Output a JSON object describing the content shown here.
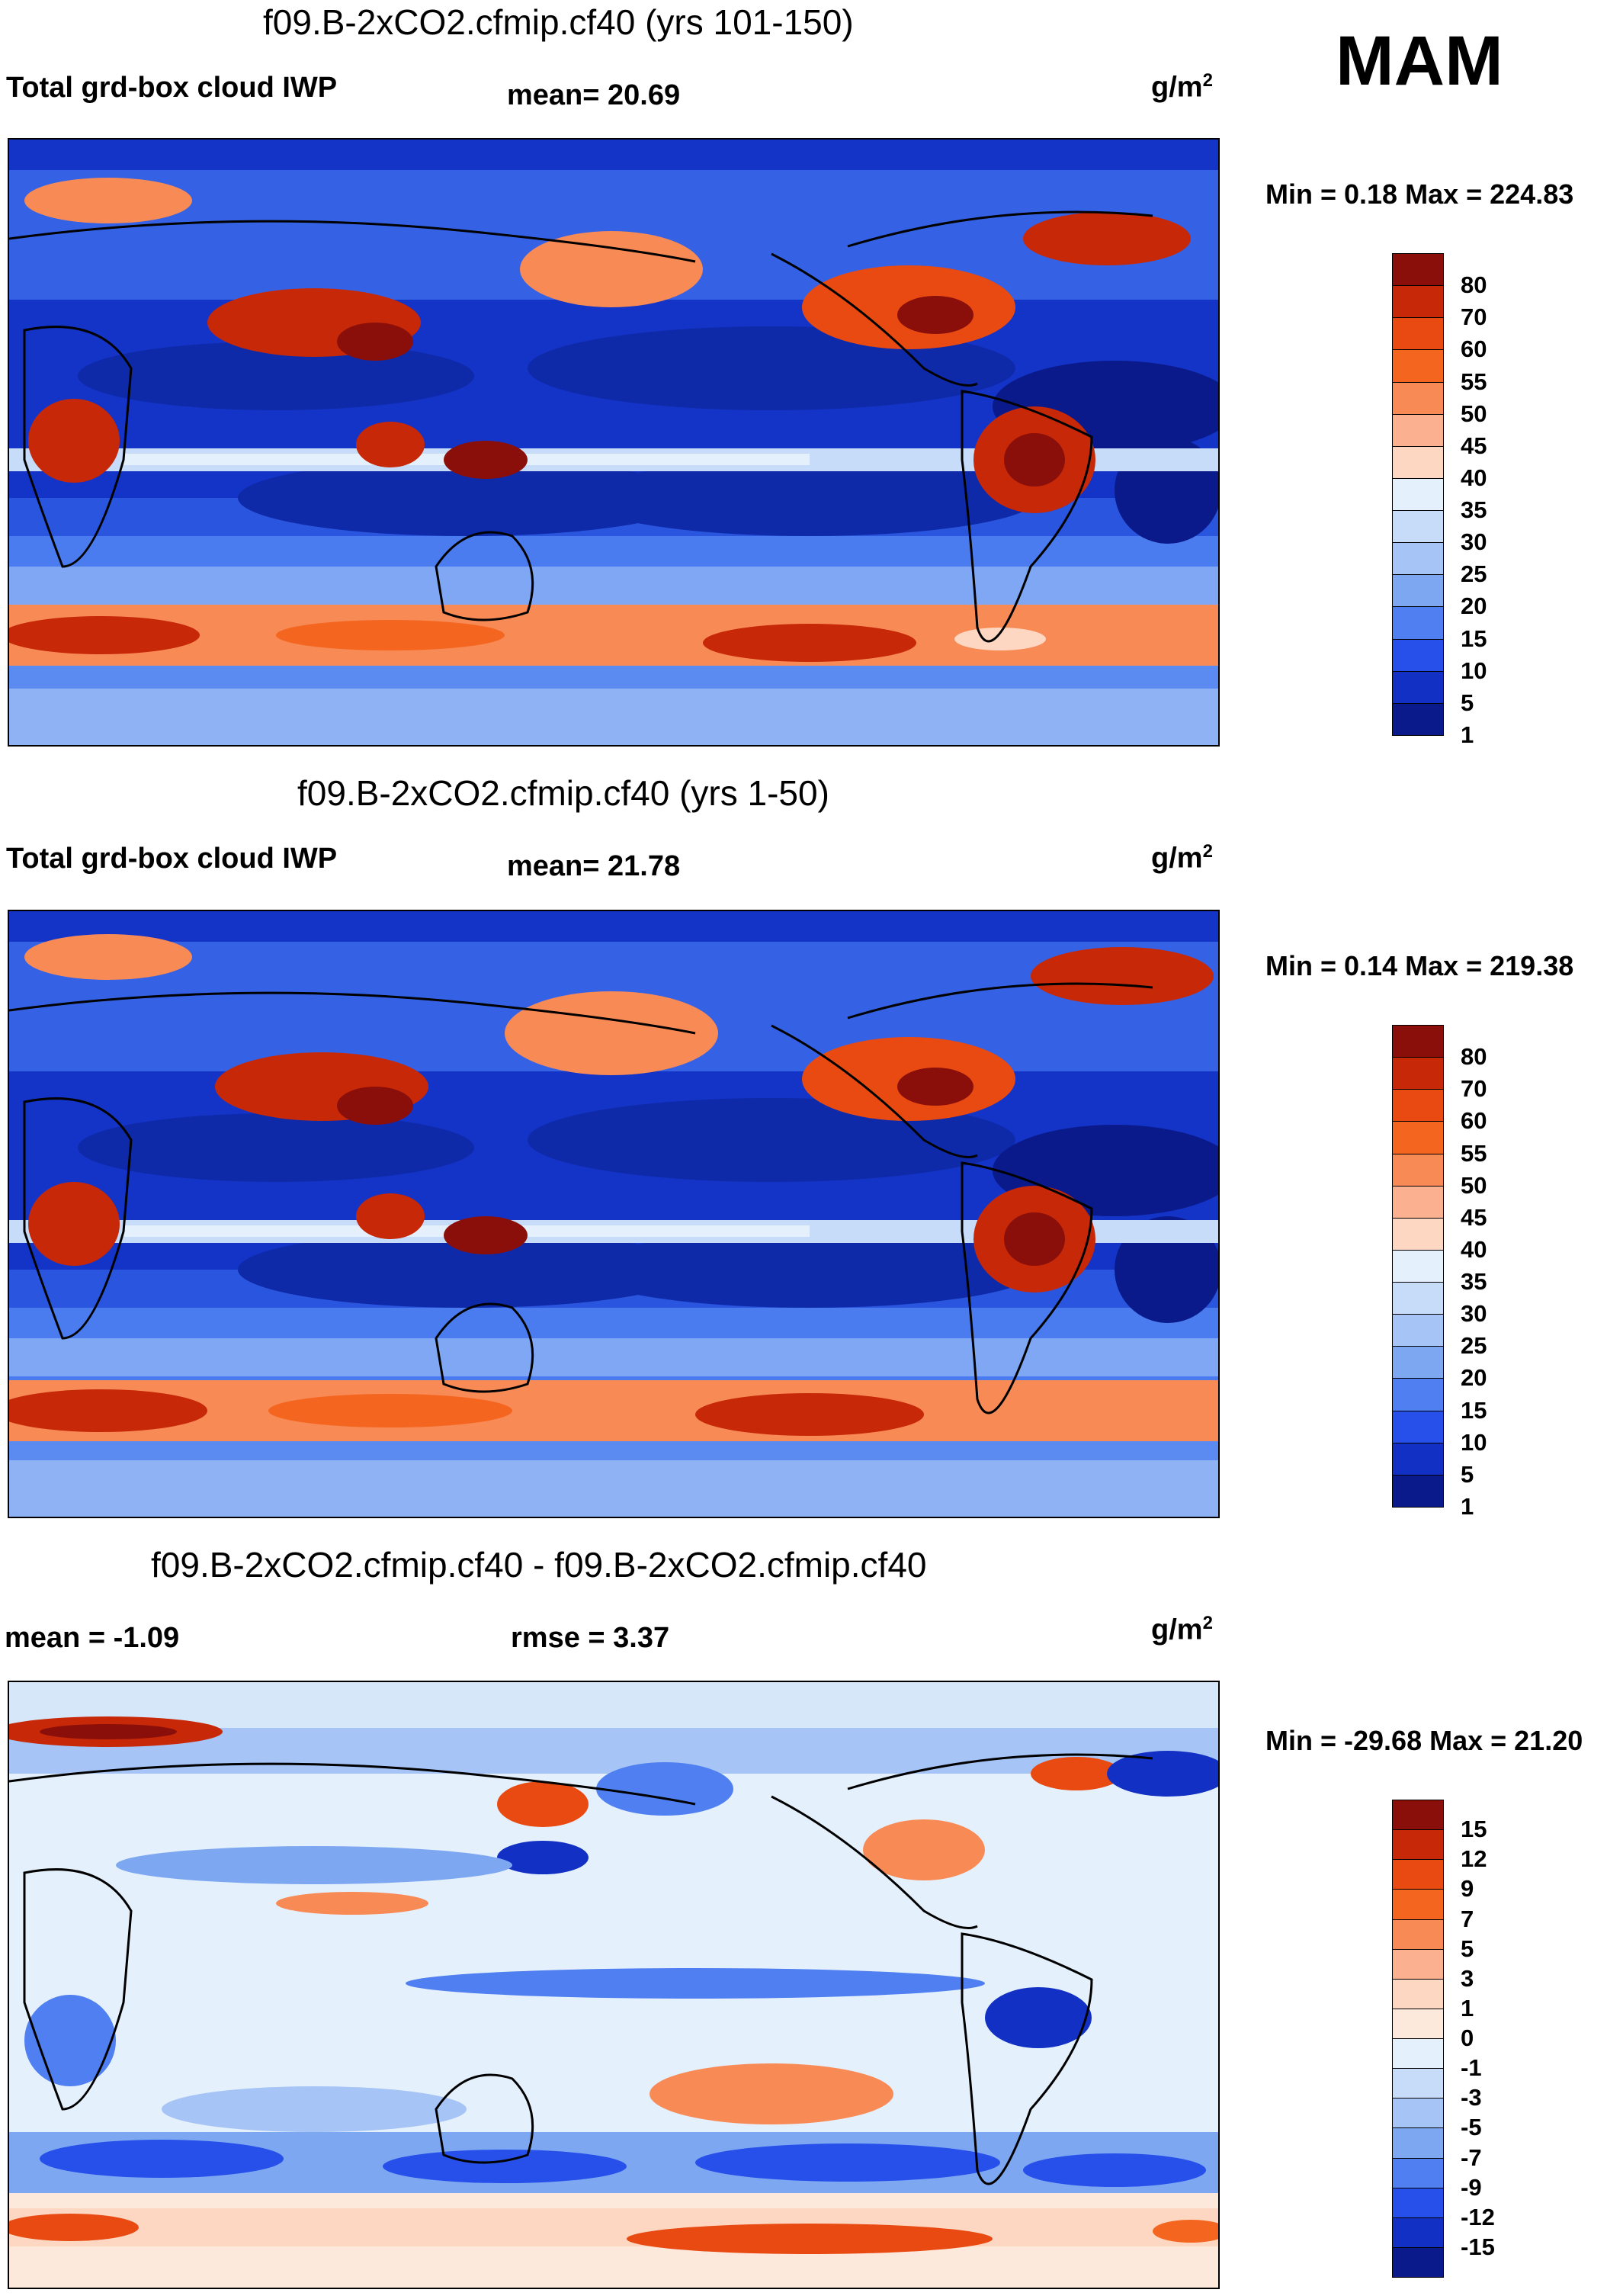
{
  "season": "MAM",
  "panels": [
    {
      "title": "f09.B-2xCO2.cfmip.cf40 (yrs 101-150)",
      "left_label": "Total grd-box cloud IWP",
      "mid_label": "mean=  20.69",
      "units_base": "g/m",
      "units_exp": "2",
      "minmax": "Min =   0.18 Max = 224.83",
      "levels": [
        "80",
        "70",
        "60",
        "55",
        "50",
        "45",
        "40",
        "35",
        "30",
        "25",
        "20",
        "15",
        "10",
        "5",
        "1"
      ],
      "colors": [
        "#8a0f0a",
        "#c62808",
        "#e84a12",
        "#f4661f",
        "#f88a56",
        "#fbb08f",
        "#fdd7c2",
        "#e4f0fb",
        "#c6dcf8",
        "#a6c4f5",
        "#7ea7f2",
        "#4f7ff0",
        "#2650e9",
        "#1230c4",
        "#0a1a8a"
      ]
    },
    {
      "title": "f09.B-2xCO2.cfmip.cf40 (yrs 1-50)",
      "left_label": "Total grd-box cloud IWP",
      "mid_label": "mean=  21.78",
      "units_base": "g/m",
      "units_exp": "2",
      "minmax": "Min =   0.14 Max = 219.38",
      "levels": [
        "80",
        "70",
        "60",
        "55",
        "50",
        "45",
        "40",
        "35",
        "30",
        "25",
        "20",
        "15",
        "10",
        "5",
        "1"
      ],
      "colors": [
        "#8a0f0a",
        "#c62808",
        "#e84a12",
        "#f4661f",
        "#f88a56",
        "#fbb08f",
        "#fdd7c2",
        "#e4f0fb",
        "#c6dcf8",
        "#a6c4f5",
        "#7ea7f2",
        "#4f7ff0",
        "#2650e9",
        "#1230c4",
        "#0a1a8a"
      ]
    },
    {
      "title": "f09.B-2xCO2.cfmip.cf40 - f09.B-2xCO2.cfmip.cf40",
      "left_label": "mean =  -1.09",
      "mid_label": "rmse =    3.37",
      "units_base": "g/m",
      "units_exp": "2",
      "minmax": "Min = -29.68 Max =  21.20",
      "levels": [
        "15",
        "12",
        "9",
        "7",
        "5",
        "3",
        "1",
        "0",
        "-1",
        "-3",
        "-5",
        "-7",
        "-9",
        "-12",
        "-15"
      ],
      "colors": [
        "#8a0f0a",
        "#c62808",
        "#e84a12",
        "#f4661f",
        "#f88a56",
        "#fbb08f",
        "#fdd7c2",
        "#fde9dc",
        "#e4f0fb",
        "#c6dcf8",
        "#a6c4f5",
        "#7ea7f2",
        "#4f7ff0",
        "#2650e9",
        "#1230c4",
        "#0a1a8a"
      ]
    }
  ]
}
